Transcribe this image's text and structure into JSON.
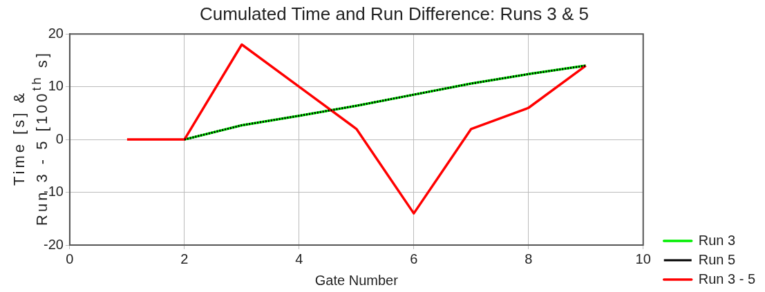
{
  "chart_data": {
    "type": "line",
    "title": "Cumulated Time and Run Difference: Runs 3 & 5",
    "xlabel": "Gate Number",
    "ylabel": [
      "Time [s] &",
      "Run 3 - 5 [100$^{th}$ s]"
    ],
    "xlim": [
      0,
      10
    ],
    "xticks": [
      0,
      2,
      4,
      6,
      8,
      10
    ],
    "ylim": [
      -20,
      20
    ],
    "yticks": [
      -20,
      -10,
      0,
      10,
      20
    ],
    "grid": true,
    "legend": "bottom right",
    "marker": "none",
    "series": [
      {
        "name": "Run 3",
        "color": "#00ee00",
        "line_style": "solid",
        "x": [
          2,
          3,
          4,
          5,
          6,
          7,
          8,
          9
        ],
        "values": [
          0,
          2.7,
          4.5,
          6.4,
          8.5,
          10.6,
          12.4,
          14
        ]
      },
      {
        "name": "Run 5",
        "color": "#000000",
        "line_style": "dotted",
        "x": [
          2,
          3,
          4,
          5,
          6,
          7,
          8,
          9
        ],
        "values": [
          0,
          2.7,
          4.5,
          6.4,
          8.5,
          10.6,
          12.4,
          14
        ]
      },
      {
        "name": "Run 3 - 5",
        "color": "#ff0000",
        "line_style": "solid",
        "x": [
          1,
          2,
          3,
          4,
          5,
          6,
          7,
          8,
          9
        ],
        "values": [
          0,
          0,
          18,
          10,
          2,
          -14,
          2,
          6,
          14
        ]
      }
    ]
  }
}
